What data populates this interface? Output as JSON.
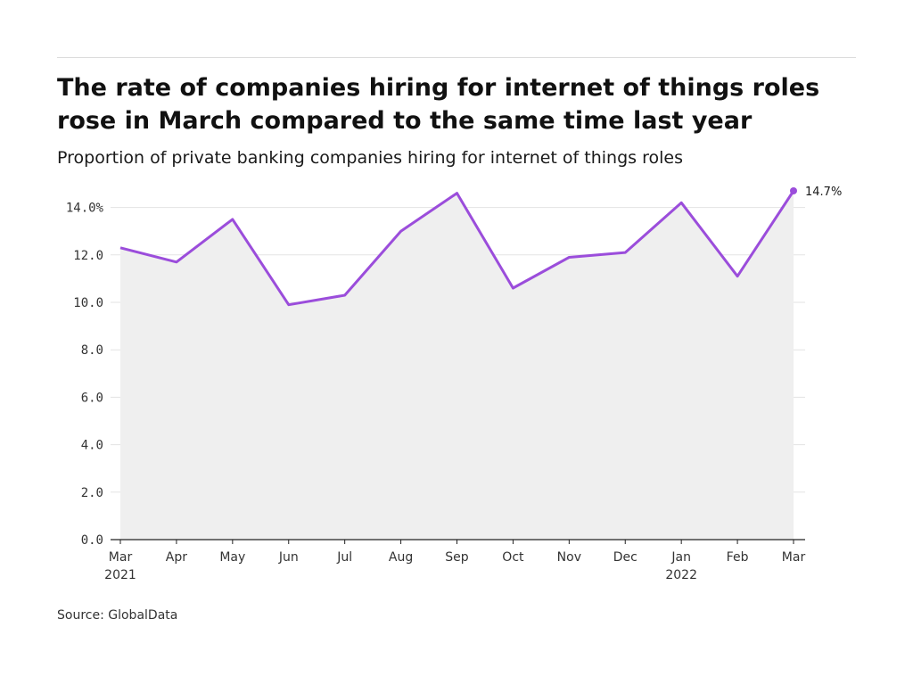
{
  "title": "The rate of companies hiring for internet of things roles rose in March compared to the same time last year",
  "subtitle": "Proportion of private banking companies hiring for internet of things roles",
  "source": "Source: GlobalData",
  "colors": {
    "line": "#9b4ddb",
    "area": "#efefef",
    "grid": "#e3e3e3",
    "axis": "#222222"
  },
  "chart_data": {
    "type": "area",
    "categories": [
      "Mar 2021",
      "Apr 2021",
      "May 2021",
      "Jun 2021",
      "Jul 2021",
      "Aug 2021",
      "Sep 2021",
      "Oct 2021",
      "Nov 2021",
      "Dec 2021",
      "Jan 2022",
      "Feb 2022",
      "Mar 2022"
    ],
    "values": [
      12.3,
      11.7,
      13.5,
      9.9,
      10.3,
      13.0,
      14.6,
      10.6,
      11.9,
      12.1,
      14.2,
      11.1,
      14.7
    ],
    "x_tick_labels": [
      {
        "month": "Mar",
        "year": "2021"
      },
      {
        "month": "Apr",
        "year": ""
      },
      {
        "month": "May",
        "year": ""
      },
      {
        "month": "Jun",
        "year": ""
      },
      {
        "month": "Jul",
        "year": ""
      },
      {
        "month": "Aug",
        "year": ""
      },
      {
        "month": "Sep",
        "year": ""
      },
      {
        "month": "Oct",
        "year": ""
      },
      {
        "month": "Nov",
        "year": ""
      },
      {
        "month": "Dec",
        "year": ""
      },
      {
        "month": "Jan",
        "year": "2022"
      },
      {
        "month": "Feb",
        "year": ""
      },
      {
        "month": "Mar",
        "year": ""
      }
    ],
    "y_ticks": [
      0,
      2,
      4,
      6,
      8,
      10,
      12,
      14
    ],
    "y_tick_labels": [
      "0.0",
      "2.0",
      "4.0",
      "6.0",
      "8.0",
      "10.0",
      "12.0",
      "14.0%"
    ],
    "ylim": [
      0,
      14.7
    ],
    "end_label": "14.7%",
    "grid": true,
    "xlabel": "",
    "ylabel": ""
  }
}
